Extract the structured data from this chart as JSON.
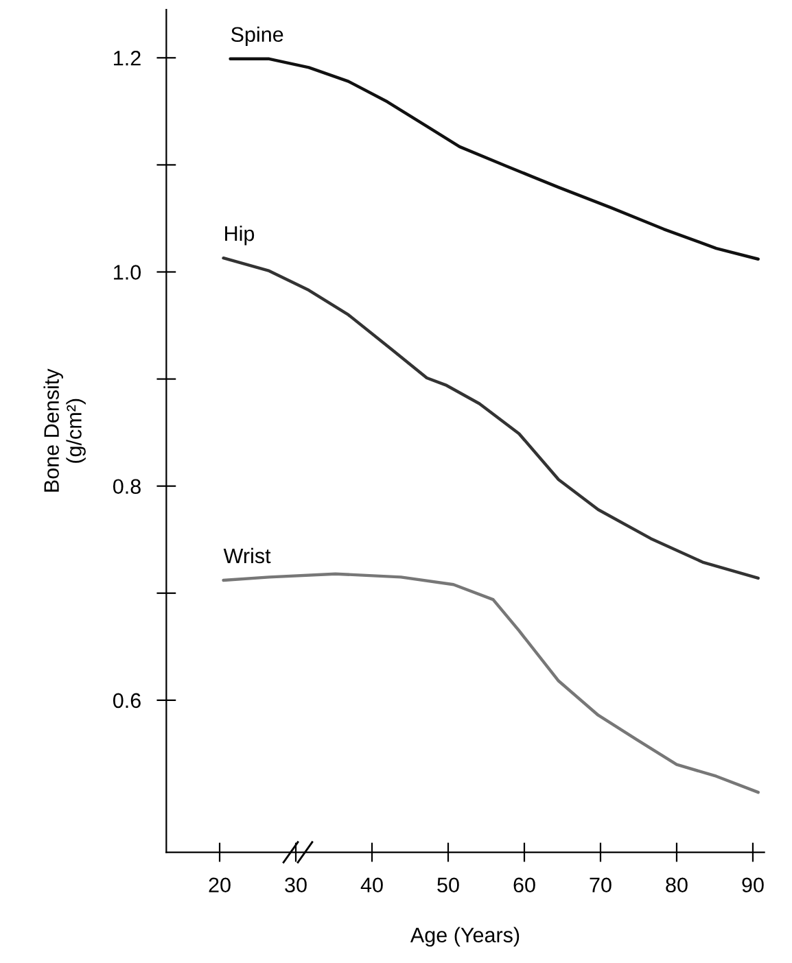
{
  "chart_data": {
    "type": "line",
    "xlabel": "Age (Years)",
    "ylabel": "Bone Density\n(g/cm²)",
    "xlim": [
      13,
      91.5
    ],
    "ylim": [
      0.458,
      1.245
    ],
    "xticks": [
      20,
      30,
      40,
      50,
      60,
      70,
      80,
      90
    ],
    "yticks": [
      {
        "value": 0.6,
        "label": "0.6"
      },
      {
        "value": 0.7,
        "label": null
      },
      {
        "value": 0.8,
        "label": "0.8"
      },
      {
        "value": 0.9,
        "label": null
      },
      {
        "value": 1.0,
        "label": "1.0"
      },
      {
        "value": 1.1,
        "label": null
      },
      {
        "value": 1.2,
        "label": "1.2"
      }
    ],
    "grid": false,
    "legend": false,
    "marker": "none",
    "line_style": "solid",
    "series": [
      {
        "name": "Spine",
        "color": "#111111",
        "x": [
          21.4,
          26.5,
          31.7,
          36.9,
          42,
          47.2,
          51.5,
          57.6,
          64.5,
          71.4,
          78.3,
          85.2,
          90.7
        ],
        "values": [
          1.199,
          1.199,
          1.191,
          1.178,
          1.159,
          1.136,
          1.117,
          1.099,
          1.079,
          1.06,
          1.04,
          1.022,
          1.012
        ]
      },
      {
        "name": "Hip",
        "color": "#333333",
        "x": [
          20.5,
          26.5,
          31.7,
          36.9,
          42,
          47.2,
          49.8,
          54.1,
          59.3,
          64.5,
          69.7,
          76.6,
          83.4,
          90.7
        ],
        "values": [
          1.013,
          1.001,
          0.983,
          0.96,
          0.931,
          0.901,
          0.894,
          0.877,
          0.849,
          0.806,
          0.778,
          0.751,
          0.729,
          0.714
        ]
      },
      {
        "name": "Wrist",
        "color": "#777777",
        "x": [
          20.5,
          26.5,
          35.2,
          43.8,
          50.7,
          55.9,
          59.3,
          64.5,
          69.7,
          74.8,
          80,
          85.2,
          90.7
        ],
        "values": [
          0.712,
          0.715,
          0.718,
          0.715,
          0.708,
          0.694,
          0.665,
          0.618,
          0.586,
          0.563,
          0.54,
          0.529,
          0.514
        ]
      }
    ]
  }
}
